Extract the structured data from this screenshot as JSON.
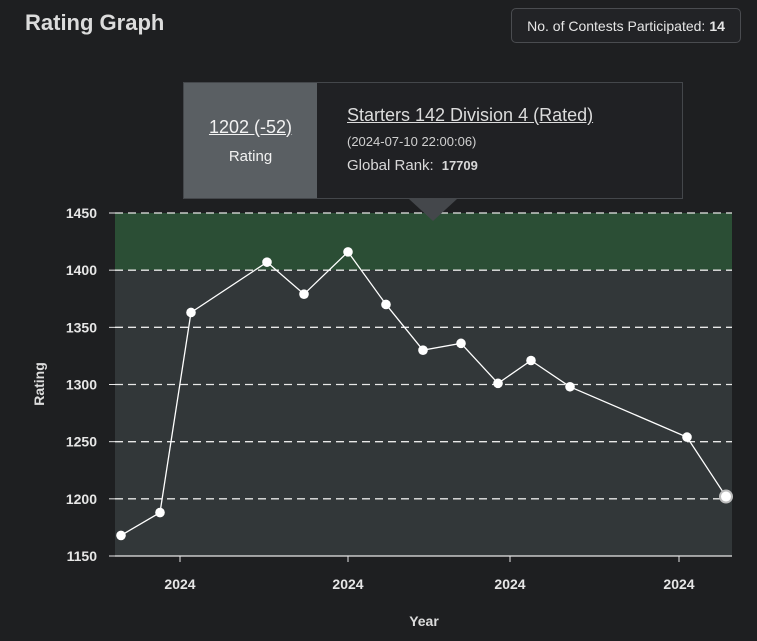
{
  "header": {
    "title": "Rating Graph",
    "contests_label": "No. of Contests Participated:",
    "contests_count": "14"
  },
  "tooltip": {
    "rating": "1202 (-52)",
    "rating_label": "Rating",
    "contest": "Starters 142 Division 4 (Rated)",
    "date": "(2024-07-10 22:00:06)",
    "rank_label": "Global Rank:",
    "rank_value": "17709"
  },
  "colors": {
    "band_green": "#2b4e35",
    "band_gray": "#323739",
    "line": "#ffffff",
    "grid": "#e8e8e8"
  },
  "chart_data": {
    "type": "line",
    "title": "",
    "xlabel": "Year",
    "ylabel": "Rating",
    "ylim": [
      1150,
      1450
    ],
    "yticks": [
      1150,
      1200,
      1250,
      1300,
      1350,
      1400,
      1450
    ],
    "xtick_labels": [
      "2024",
      "2024",
      "2024",
      "2024"
    ],
    "grid": "horizontal dashed",
    "bands": [
      {
        "from": 1400,
        "to": 1450,
        "color": "#2b4e35"
      },
      {
        "from": 1150,
        "to": 1400,
        "color": "#323739"
      }
    ],
    "series": [
      {
        "values": [
          1168,
          1188,
          1363,
          1407,
          1379,
          1416,
          1370,
          1330,
          1336,
          1301,
          1321,
          1298,
          1254,
          1202
        ]
      }
    ],
    "highlight_index": 13
  }
}
